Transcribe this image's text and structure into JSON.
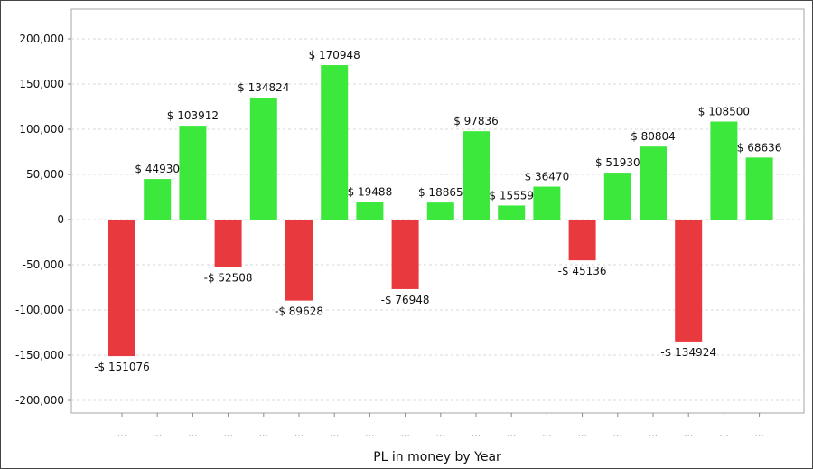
{
  "chart_data": {
    "type": "bar",
    "xlabel": "PL in money by Year",
    "ylabel": "",
    "ylim": [
      -200000,
      200000
    ],
    "yticks": [
      -200000,
      -150000,
      -100000,
      -50000,
      0,
      50000,
      100000,
      150000,
      200000
    ],
    "ytick_labels": [
      "-200,000",
      "-150,000",
      "-100,000",
      "-50,000",
      "0",
      "50,000",
      "100,000",
      "150,000",
      "200,000"
    ],
    "grid": true,
    "legend": "none",
    "categories": [
      "...",
      "...",
      "...",
      "...",
      "...",
      "...",
      "...",
      "...",
      "...",
      "...",
      "...",
      "...",
      "...",
      "...",
      "...",
      "...",
      "...",
      "...",
      "..."
    ],
    "values": [
      -151076,
      44930,
      103912,
      -52508,
      134824,
      -89628,
      170948,
      19488,
      -76948,
      18865,
      97836,
      15559,
      36470,
      -45136,
      51930,
      80804,
      -134924,
      108500,
      68636
    ],
    "data_labels": [
      "-$ 151076",
      "$ 44930",
      "$ 103912",
      "-$ 52508",
      "$ 134824",
      "-$ 89628",
      "$ 170948",
      "$ 19488",
      "-$ 76948",
      "$ 18865",
      "$ 97836",
      "$ 15559",
      "$ 36470",
      "-$ 45136",
      "$ 51930",
      "$ 80804",
      "-$ 134924",
      "$ 108500",
      "$ 68636"
    ],
    "colors": {
      "positive": "#3de83d",
      "negative": "#e8393f",
      "grid": "#d9d9d9",
      "axis": "#888888"
    }
  }
}
